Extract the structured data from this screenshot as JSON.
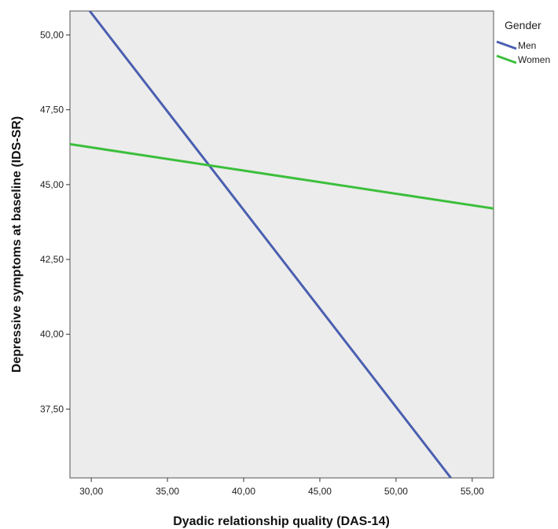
{
  "chart_data": {
    "type": "line",
    "title": "",
    "xlabel": "Dyadic relationship quality (DAS-14)",
    "ylabel": "Depressive symptoms at baseline (IDS-SR)",
    "xlim": [
      28.6,
      56.4
    ],
    "ylim": [
      35.2,
      50.8
    ],
    "x_ticks": [
      30,
      35,
      40,
      45,
      50,
      55
    ],
    "x_tick_labels": [
      "30,00",
      "35,00",
      "40,00",
      "45,00",
      "50,00",
      "55,00"
    ],
    "y_ticks": [
      37.5,
      40,
      42.5,
      45,
      47.5,
      50
    ],
    "y_tick_labels": [
      "37,50",
      "40,00",
      "42,50",
      "45,00",
      "47,50",
      "50,00"
    ],
    "grid": false,
    "legend_title": "Gender",
    "legend_position": "top-right-outside",
    "series": [
      {
        "name": "Men",
        "color": "#4a5fb0",
        "x": [
          29.9,
          53.6
        ],
        "y": [
          50.8,
          35.2
        ]
      },
      {
        "name": "Women",
        "color": "#3cbf3c",
        "x": [
          28.6,
          56.4
        ],
        "y": [
          46.35,
          44.2
        ]
      }
    ],
    "plot_background": "#ececec"
  }
}
